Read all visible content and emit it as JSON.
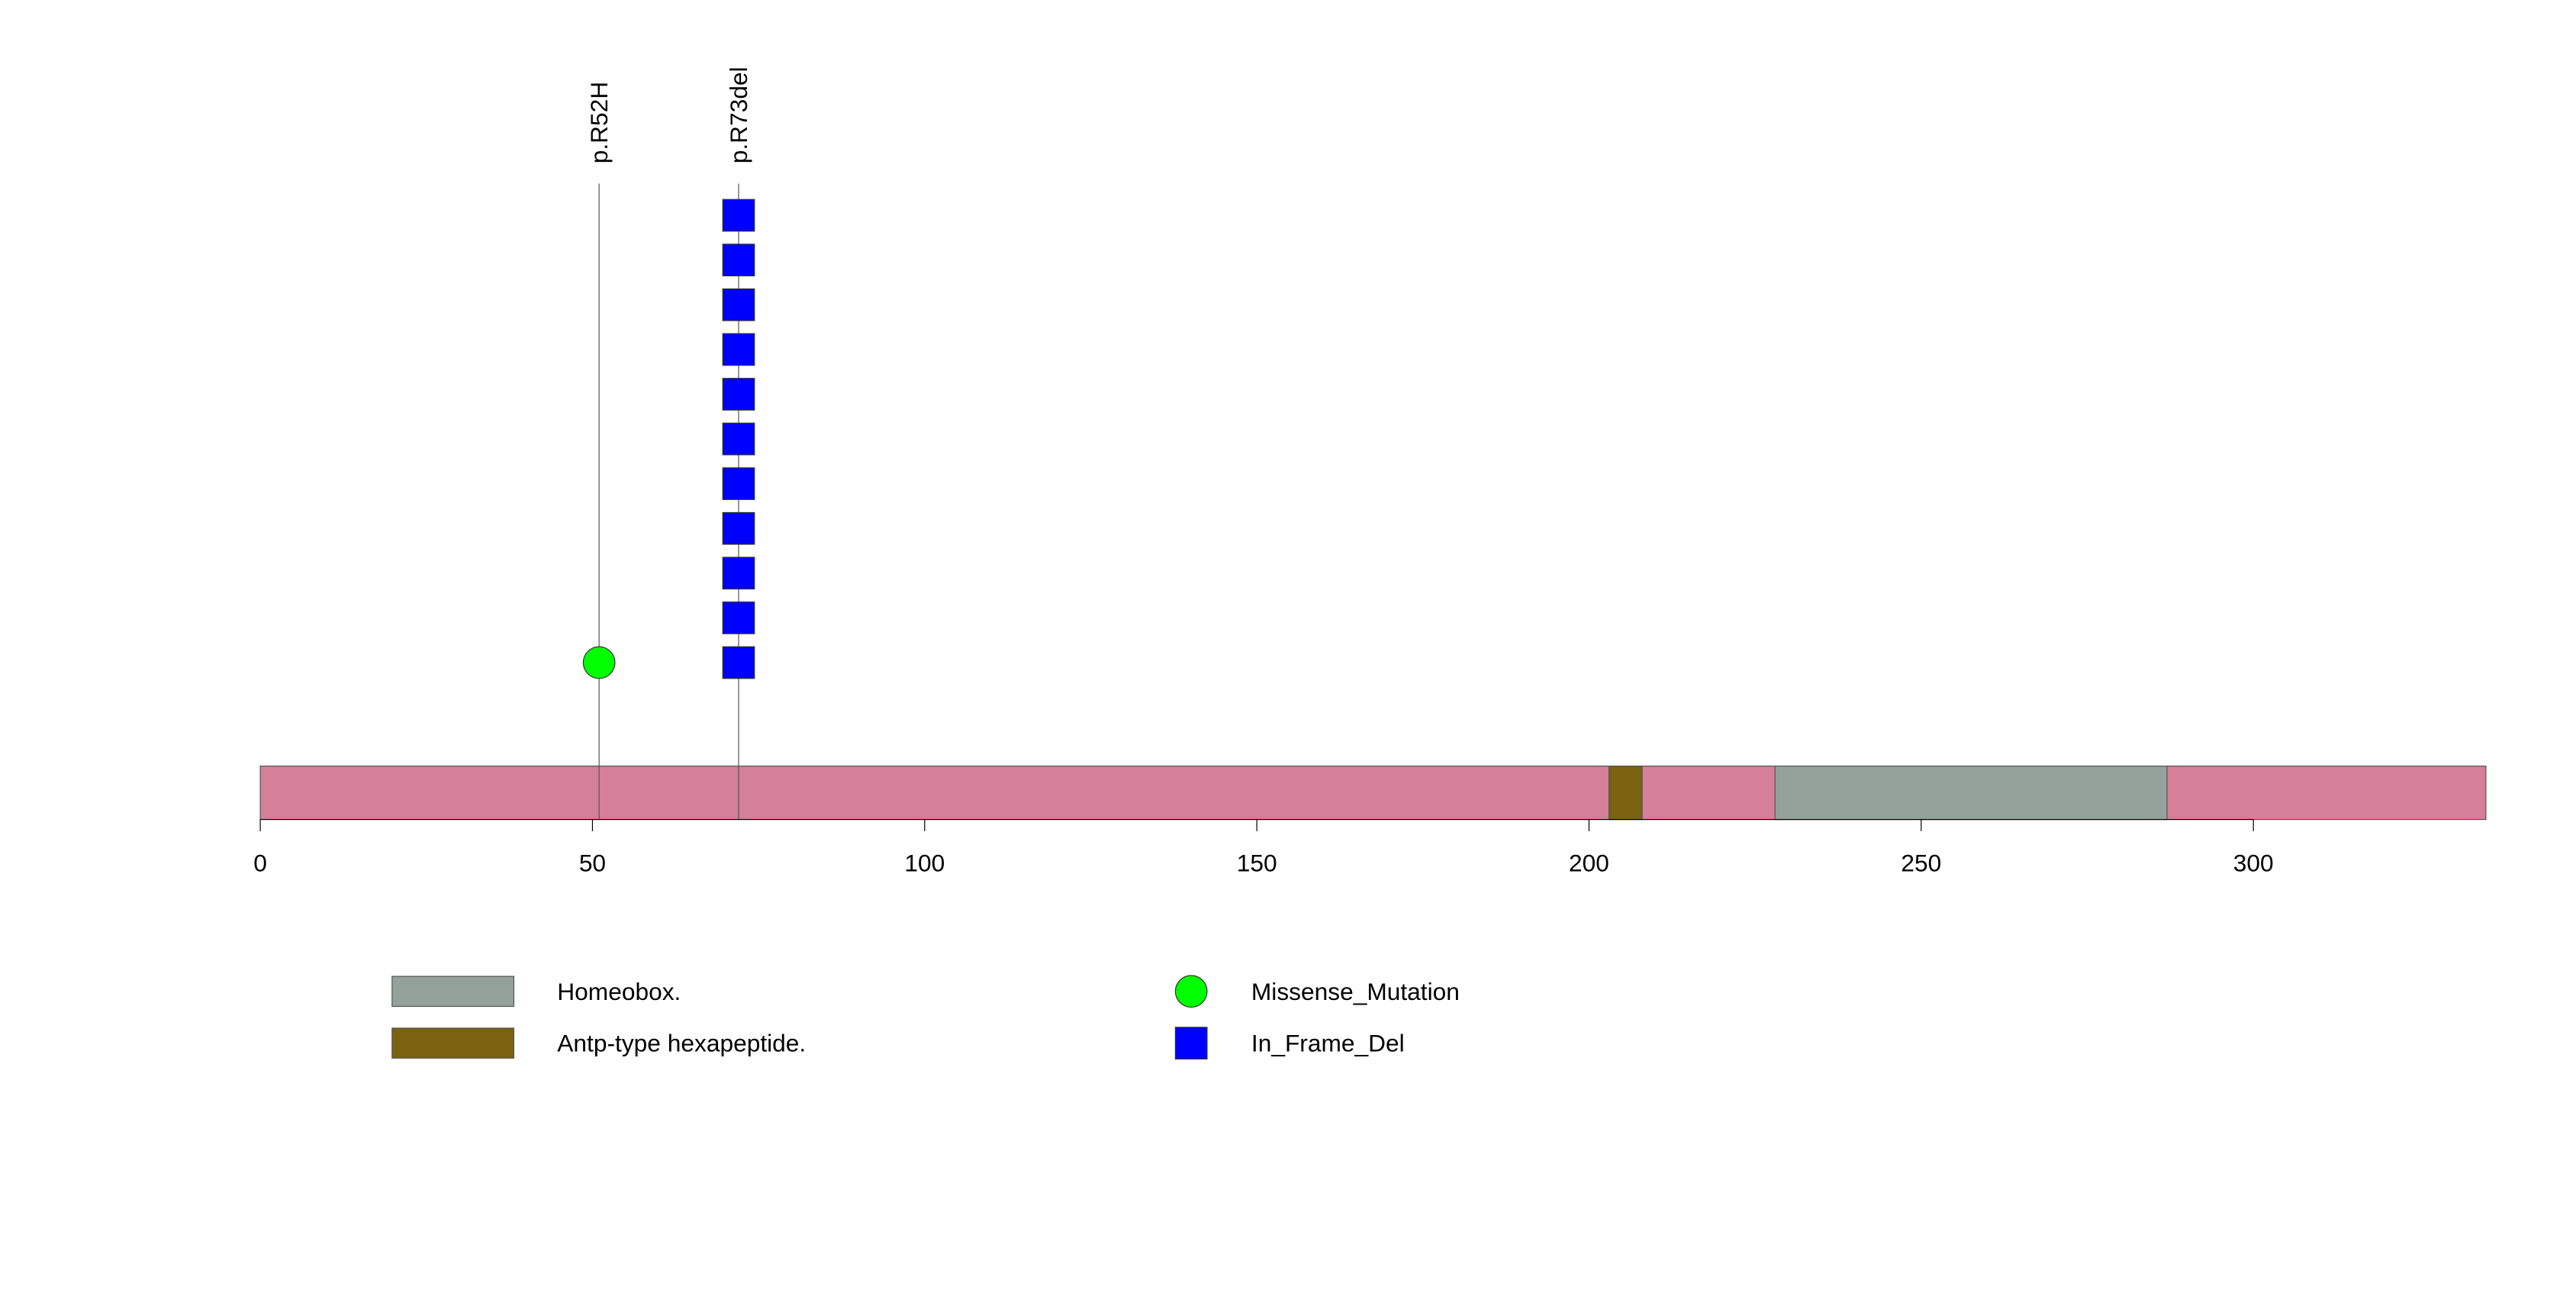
{
  "chart_data": {
    "type": "lollipop",
    "protein_length": 335,
    "xlim": [
      0,
      335
    ],
    "x_ticks": [
      0,
      50,
      100,
      150,
      200,
      250,
      300
    ],
    "backbone_color": "#d57f98",
    "domains": [
      {
        "name": "Antp-type hexapeptide.",
        "start": 203,
        "end": 208,
        "color": "#7a6210"
      },
      {
        "name": "Homeobox.",
        "start": 228,
        "end": 287,
        "color": "#95a19b"
      }
    ],
    "mutations": [
      {
        "label": "p.R52H",
        "position": 51,
        "count": 1,
        "type": "Missense_Mutation",
        "shape": "circle",
        "color": "#00ff00"
      },
      {
        "label": "p.R73del",
        "position": 72,
        "count": 11,
        "type": "In_Frame_Del",
        "shape": "square",
        "color": "#0000ff"
      }
    ],
    "legend": {
      "domains": [
        {
          "name": "Homeobox.",
          "color": "#95a19b"
        },
        {
          "name": "Antp-type hexapeptide.",
          "color": "#7a6210"
        }
      ],
      "mutation_types": [
        {
          "name": "Missense_Mutation",
          "shape": "circle",
          "color": "#00ff00"
        },
        {
          "name": "In_Frame_Del",
          "shape": "square",
          "color": "#0000ff"
        }
      ]
    }
  }
}
